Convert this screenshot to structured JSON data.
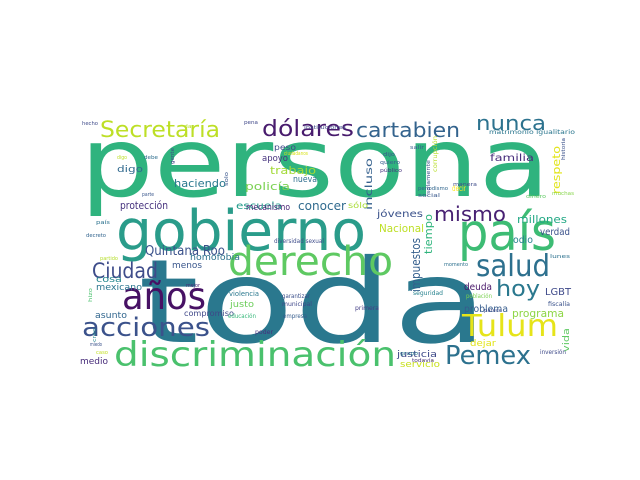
{
  "words": [
    {
      "text": "persona",
      "color": "#2fb37e"
    },
    {
      "text": "toda",
      "color": "#2a788e"
    },
    {
      "text": "gobierno",
      "color": "#2a9c8a"
    },
    {
      "text": "país",
      "color": "#3dbc74"
    },
    {
      "text": "derecho",
      "color": "#5ec962"
    },
    {
      "text": "discriminación",
      "color": "#4ac16d"
    },
    {
      "text": "años",
      "color": "#471164"
    },
    {
      "text": "acciones",
      "color": "#3b528b"
    },
    {
      "text": "Pemex",
      "color": "#2c718e"
    },
    {
      "text": "Tulum",
      "color": "#e6e419"
    },
    {
      "text": "salud",
      "color": "#2d708e"
    },
    {
      "text": "hoy",
      "color": "#2a788e"
    },
    {
      "text": "Ciudad",
      "color": "#3e4c8a"
    },
    {
      "text": "Secretaría",
      "color": "#bddf26"
    },
    {
      "text": "dólares",
      "color": "#481b6d"
    },
    {
      "text": "cartabien",
      "color": "#33638d"
    },
    {
      "text": "nunca",
      "color": "#2c728e"
    },
    {
      "text": "mismo",
      "color": "#482173"
    },
    {
      "text": "Quintana Roo",
      "color": "#3b528b"
    },
    {
      "text": "millones",
      "color": "#22a884"
    },
    {
      "text": "impuestos",
      "color": "#355f8d"
    },
    {
      "text": "tiempo",
      "color": "#2fb47c"
    },
    {
      "text": "conocer",
      "color": "#306a8e"
    },
    {
      "text": "haciendo",
      "color": "#2a788e"
    },
    {
      "text": "policía",
      "color": "#7ad151"
    },
    {
      "text": "trabajo",
      "color": "#a2da37"
    },
    {
      "text": "Nacional",
      "color": "#bddf26"
    },
    {
      "text": "jóvenes",
      "color": "#3b528b"
    },
    {
      "text": "programa",
      "color": "#8ed645"
    },
    {
      "text": "familia",
      "color": "#472d7b"
    },
    {
      "text": "respeto",
      "color": "#e1e418"
    },
    {
      "text": "odio",
      "color": "#26828e"
    },
    {
      "text": "verdad",
      "color": "#3b528b"
    },
    {
      "text": "deuda",
      "color": "#481769"
    },
    {
      "text": "LGBT",
      "color": "#3e4989"
    },
    {
      "text": "problema",
      "color": "#365c8d"
    },
    {
      "text": "dejar",
      "color": "#e2e418"
    },
    {
      "text": "justicia",
      "color": "#3e4a89"
    },
    {
      "text": "servicio",
      "color": "#c8e020"
    },
    {
      "text": "vida",
      "color": "#5ec962"
    },
    {
      "text": "protección",
      "color": "#46327e"
    },
    {
      "text": "escuela",
      "color": "#1f9a8a"
    },
    {
      "text": "nueva",
      "color": "#2e6e8e"
    },
    {
      "text": "incluso",
      "color": "#34608d"
    },
    {
      "text": "apoyo",
      "color": "#46337e"
    },
    {
      "text": "peso",
      "color": "#3f4788"
    },
    {
      "text": "digo",
      "color": "#30698e"
    },
    {
      "text": "cosa",
      "color": "#24878e"
    },
    {
      "text": "asunto",
      "color": "#31668e"
    },
    {
      "text": "mexicano",
      "color": "#2b758e"
    },
    {
      "text": "medio",
      "color": "#472c7a"
    },
    {
      "text": "homofobia",
      "color": "#2c728e"
    },
    {
      "text": "menos",
      "color": "#39568c"
    },
    {
      "text": "justo",
      "color": "#6ccd5a"
    },
    {
      "text": "mecanismo",
      "color": "#482374"
    },
    {
      "text": "compromiso",
      "color": "#3f4788"
    },
    {
      "text": "sólo",
      "color": "#a8db34"
    },
    {
      "text": "violencia",
      "color": "#2a788e"
    },
    {
      "text": "garantizar",
      "color": "#3c508b"
    },
    {
      "text": "municipal",
      "color": "#3f4889"
    },
    {
      "text": "educación",
      "color": "#35b779"
    },
    {
      "text": "empresa",
      "color": "#365d8d"
    },
    {
      "text": "primera",
      "color": "#433e85"
    },
    {
      "text": "seguridad",
      "color": "#26828e"
    },
    {
      "text": "población",
      "color": "#7ad151"
    },
    {
      "text": "fiscalía",
      "color": "#3b528b"
    },
    {
      "text": "inversión",
      "color": "#3e4a89"
    },
    {
      "text": "poder",
      "color": "#472f7d"
    },
    {
      "text": "diversidad sexual",
      "color": "#3e4c8a"
    },
    {
      "text": "momento",
      "color": "#2d708e"
    },
    {
      "text": "lunes",
      "color": "#2c718e"
    },
    {
      "text": "muchas",
      "color": "#86d549"
    },
    {
      "text": "social",
      "color": "#38588c"
    },
    {
      "text": "dinero",
      "color": "#5ec962"
    },
    {
      "text": "periodismo",
      "color": "#31668e"
    },
    {
      "text": "manera",
      "color": "#3e4c8a"
    },
    {
      "text": "grupo",
      "color": "#2a768e"
    },
    {
      "text": "todavía",
      "color": "#46307e"
    },
    {
      "text": "parece",
      "color": "#3e4c8a"
    },
    {
      "text": "decir",
      "color": "#fde725"
    },
    {
      "text": "solamente",
      "color": "#3b528b"
    },
    {
      "text": "corrupción",
      "color": "#b8de29"
    },
    {
      "text": "quiero",
      "color": "#365c8d"
    },
    {
      "text": "público",
      "color": "#46337e"
    },
    {
      "text": "dijo",
      "color": "#3b528b"
    },
    {
      "text": "salir",
      "color": "#355f8d"
    },
    {
      "text": "instituciones",
      "color": "#3e4989"
    },
    {
      "text": "ciudadanos",
      "color": "#d8e219"
    },
    {
      "text": "matrimonio igualitario",
      "color": "#2a768e"
    },
    {
      "text": "historia",
      "color": "#3b528b"
    },
    {
      "text": "pena",
      "color": "#3f4889"
    },
    {
      "text": "hecho",
      "color": "#3e4a89"
    },
    {
      "text": "debe",
      "color": "#2e6e8e"
    },
    {
      "text": "gente",
      "color": "#3f4788"
    },
    {
      "text": "solo",
      "color": "#39568c"
    },
    {
      "text": "dar",
      "color": "#b5de2b"
    },
    {
      "text": "país",
      "color": "#2c728e"
    },
    {
      "text": "parte",
      "color": "#39568c"
    },
    {
      "text": "decreto",
      "color": "#32648e"
    },
    {
      "text": "partido",
      "color": "#b5de2b"
    },
    {
      "text": "mejor",
      "color": "#482878"
    },
    {
      "text": "hizo",
      "color": "#4ac16d"
    },
    {
      "text": "creo",
      "color": "#24878e"
    },
    {
      "text": "miedo",
      "color": "#3b528b"
    },
    {
      "text": "digo",
      "color": "#bddf26"
    },
    {
      "text": "caso",
      "color": "#c2df23"
    },
    {
      "text": "grave",
      "color": "#2c728e"
    }
  ]
}
